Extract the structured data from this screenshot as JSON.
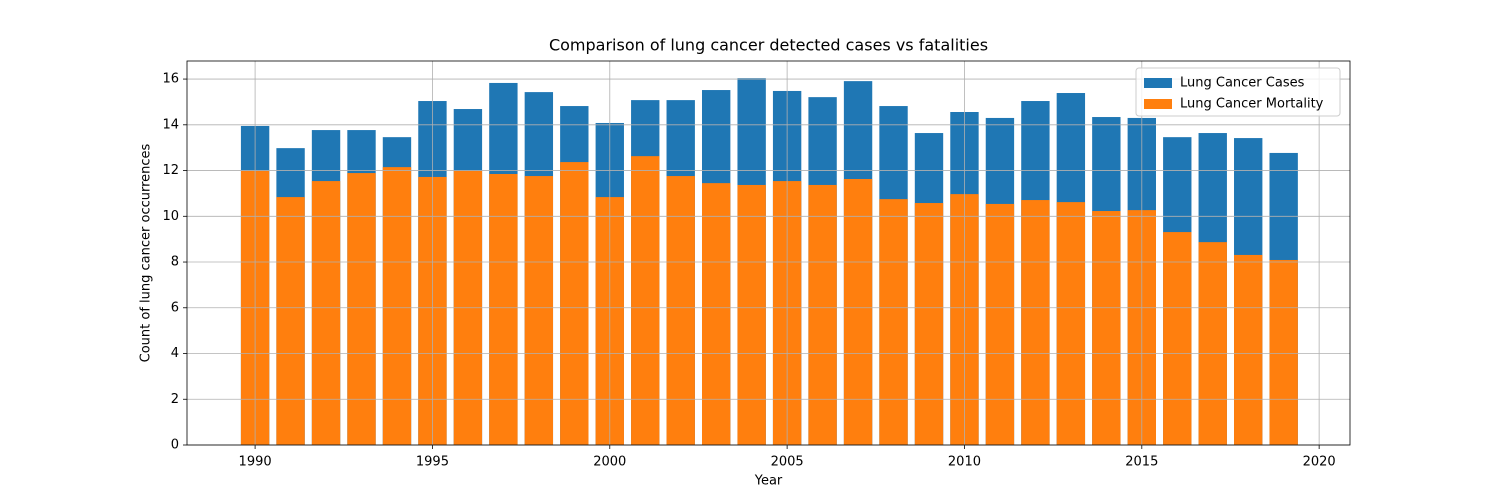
{
  "chart_data": {
    "type": "bar",
    "title": "Comparison of lung cancer detected cases vs fatalities",
    "x_label": "Year",
    "y_label": "Count of lung cancer occurrences",
    "x": [
      1990,
      1991,
      1992,
      1993,
      1994,
      1995,
      1996,
      1997,
      1998,
      1999,
      2000,
      2001,
      2002,
      2003,
      2004,
      2005,
      2006,
      2007,
      2008,
      2009,
      2010,
      2011,
      2012,
      2013,
      2014,
      2015,
      2016,
      2017,
      2018,
      2019
    ],
    "series": [
      {
        "name": "Lung Cancer Cases",
        "color": "#1f77b4",
        "values": [
          13.95,
          12.98,
          13.77,
          13.77,
          13.46,
          15.04,
          14.69,
          15.83,
          15.43,
          14.82,
          14.08,
          15.08,
          15.08,
          15.52,
          16.04,
          15.48,
          15.21,
          15.91,
          14.82,
          13.64,
          14.56,
          14.3,
          15.04,
          15.39,
          14.34,
          14.3,
          13.46,
          13.64,
          13.42,
          12.77
        ]
      },
      {
        "name": "Lung Cancer Mortality",
        "color": "#ff7f0e",
        "values": [
          11.98,
          10.84,
          11.54,
          11.89,
          12.15,
          11.72,
          11.98,
          11.85,
          11.76,
          12.37,
          10.84,
          12.63,
          11.76,
          11.45,
          11.37,
          11.54,
          11.37,
          11.63,
          10.75,
          10.58,
          10.97,
          10.54,
          10.71,
          10.62,
          10.23,
          10.27,
          9.31,
          8.87,
          8.31,
          8.09
        ]
      }
    ],
    "bar_width": 0.8,
    "xlim": [
      1988.08,
      2020.87
    ],
    "xticks": [
      1990,
      1995,
      2000,
      2005,
      2010,
      2015,
      2020
    ],
    "ylim": [
      0,
      16.79
    ],
    "yticks": [
      0,
      2,
      4,
      6,
      8,
      10,
      12,
      14,
      16
    ],
    "grid": true,
    "legend": "upper right"
  }
}
